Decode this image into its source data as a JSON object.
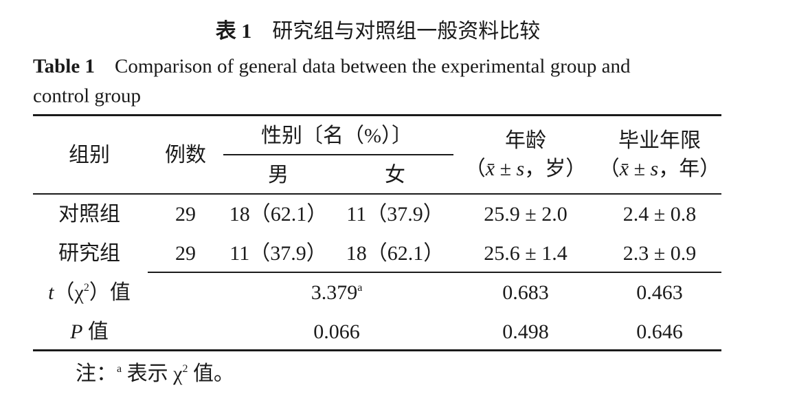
{
  "caption": {
    "cn_label": "表 1",
    "cn_text": "研究组与对照组一般资料比较",
    "en_label": "Table 1",
    "en_text_line1": "Comparison of general data between the experimental group and",
    "en_text_line2": "control group"
  },
  "table": {
    "header": {
      "group": "组别",
      "count": "例数",
      "sex": "性别〔名（%）〕",
      "male": "男",
      "female": "女",
      "age": "年龄",
      "age_unit": [
        "（",
        "x̄",
        " ± ",
        "s",
        "，岁）"
      ],
      "years": "毕业年限",
      "years_unit": [
        "（",
        "x̄",
        " ± ",
        "s",
        "，年）"
      ]
    },
    "rows": [
      [
        "对照组",
        "29",
        "18（62.1）",
        "11（37.9）",
        "25.9 ± 2.0",
        "2.4 ± 0.8"
      ],
      [
        "研究组",
        "29",
        "11（37.9）",
        "18（62.1）",
        "25.6 ± 1.4",
        "2.3 ± 0.9"
      ]
    ],
    "stats": [
      {
        "label": [
          "t",
          "（χ",
          "2",
          "）值"
        ],
        "sex": "3.379",
        "sex_sup": "a",
        "age": "0.683",
        "years": "0.463"
      },
      {
        "label": [
          "P",
          " 值"
        ],
        "sex": "0.066",
        "age": "0.498",
        "years": "0.646"
      }
    ]
  },
  "note": [
    "注：",
    "a",
    "表示 χ",
    "2",
    "值。"
  ]
}
